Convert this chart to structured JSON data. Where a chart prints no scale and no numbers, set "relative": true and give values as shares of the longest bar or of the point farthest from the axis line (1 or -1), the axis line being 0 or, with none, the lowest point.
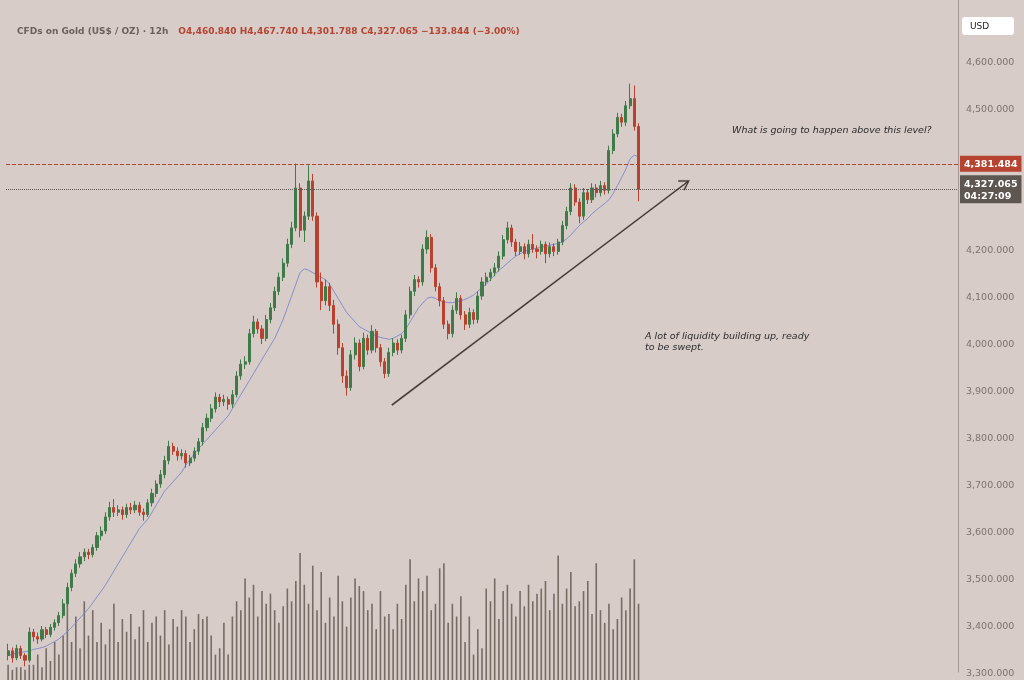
{
  "chart_data": [
    {
      "type": "candlestick",
      "title": "CFDs on Gold (US$ / OZ) · 12h",
      "subtitle": "O4,460.840 H4,467.740 L4,301.788 C4,327.065 −133.844 (−3.00%)",
      "ylabel": "USD",
      "categories": [
        null,
        null,
        null,
        null,
        null,
        null,
        null,
        null,
        null,
        null,
        null,
        null,
        null,
        null,
        null,
        null,
        null,
        null,
        null,
        null,
        null,
        null,
        null,
        null,
        null,
        null,
        null,
        null,
        null,
        null,
        null,
        null,
        null,
        null,
        null,
        null,
        null,
        null,
        null,
        null,
        null,
        null,
        null,
        null,
        null,
        null,
        null,
        null,
        null,
        null,
        null,
        null,
        null,
        null,
        null,
        null,
        null,
        null,
        null,
        null,
        null,
        null,
        null,
        null,
        null,
        null,
        null,
        null,
        null,
        null,
        null,
        null,
        null,
        null,
        null,
        null,
        null,
        null,
        null,
        null,
        null,
        null,
        null,
        null,
        null,
        null,
        null,
        null,
        null,
        null,
        null,
        null,
        null,
        null,
        null,
        null,
        null,
        null,
        null,
        null,
        null,
        null,
        null,
        null,
        null,
        null,
        null,
        null,
        null,
        null,
        null,
        null,
        null,
        null,
        null,
        null,
        null,
        null,
        null,
        null,
        null,
        null,
        null,
        null,
        null,
        null,
        null,
        null,
        null,
        null,
        null,
        null,
        null,
        null,
        null,
        null,
        null,
        null,
        null,
        null,
        null,
        null,
        null,
        null,
        null,
        null,
        null,
        null,
        null,
        null
      ],
      "ylim": [
        3300,
        4730
      ],
      "yticks": [
        {
          "value": 3300,
          "label": "3,300.000"
        },
        {
          "value": 3400,
          "label": "3,400.000"
        },
        {
          "value": 3500,
          "label": "3,500.000"
        },
        {
          "value": 3600,
          "label": "3,600.000"
        },
        {
          "value": 3700,
          "label": "3,700.000"
        },
        {
          "value": 3800,
          "label": "3,800.000"
        },
        {
          "value": 3900,
          "label": "3,900.000"
        },
        {
          "value": 4000,
          "label": "4,000.000"
        },
        {
          "value": 4100,
          "label": "4,100.000"
        },
        {
          "value": 4200,
          "label": "4,200.000"
        },
        {
          "value": 4500,
          "label": "4,500.000"
        },
        {
          "value": 4600,
          "label": "4,600.000"
        }
      ],
      "tick_labels": "y",
      "series": [
        {
          "type": "candlestick",
          "ohlc": [
            [
              3335,
              3360,
              3325,
              3345
            ],
            [
              3345,
              3352,
              3320,
              3330
            ],
            [
              3330,
              3358,
              3325,
              3350
            ],
            [
              3350,
              3356,
              3328,
              3335
            ],
            [
              3335,
              3340,
              3312,
              3325
            ],
            [
              3325,
              3395,
              3320,
              3385
            ],
            [
              3385,
              3392,
              3365,
              3375
            ],
            [
              3375,
              3384,
              3360,
              3370
            ],
            [
              3370,
              3398,
              3365,
              3390
            ],
            [
              3390,
              3396,
              3372,
              3380
            ],
            [
              3380,
              3402,
              3374,
              3395
            ],
            [
              3395,
              3412,
              3388,
              3405
            ],
            [
              3405,
              3428,
              3398,
              3420
            ],
            [
              3420,
              3455,
              3414,
              3445
            ],
            [
              3445,
              3490,
              3440,
              3480
            ],
            [
              3480,
              3518,
              3472,
              3510
            ],
            [
              3510,
              3540,
              3502,
              3530
            ],
            [
              3530,
              3555,
              3522,
              3545
            ],
            [
              3545,
              3563,
              3536,
              3555
            ],
            [
              3555,
              3562,
              3540,
              3550
            ],
            [
              3550,
              3572,
              3544,
              3565
            ],
            [
              3565,
              3598,
              3558,
              3590
            ],
            [
              3590,
              3610,
              3580,
              3600
            ],
            [
              3600,
              3640,
              3594,
              3630
            ],
            [
              3630,
              3662,
              3622,
              3650
            ],
            [
              3650,
              3668,
              3630,
              3640
            ],
            [
              3640,
              3655,
              3632,
              3645
            ],
            [
              3645,
              3652,
              3624,
              3635
            ],
            [
              3635,
              3658,
              3628,
              3650
            ],
            [
              3650,
              3660,
              3636,
              3645
            ],
            [
              3645,
              3664,
              3638,
              3655
            ],
            [
              3655,
              3662,
              3632,
              3640
            ],
            [
              3640,
              3648,
              3622,
              3635
            ],
            [
              3635,
              3668,
              3630,
              3660
            ],
            [
              3660,
              3690,
              3652,
              3680
            ],
            [
              3680,
              3708,
              3672,
              3700
            ],
            [
              3700,
              3730,
              3692,
              3720
            ],
            [
              3720,
              3760,
              3712,
              3750
            ],
            [
              3750,
              3792,
              3742,
              3780
            ],
            [
              3780,
              3788,
              3762,
              3770
            ],
            [
              3770,
              3778,
              3750,
              3760
            ],
            [
              3760,
              3774,
              3752,
              3765
            ],
            [
              3765,
              3772,
              3735,
              3745
            ],
            [
              3745,
              3762,
              3738,
              3755
            ],
            [
              3755,
              3778,
              3748,
              3770
            ],
            [
              3770,
              3798,
              3762,
              3790
            ],
            [
              3790,
              3830,
              3782,
              3820
            ],
            [
              3820,
              3850,
              3812,
              3840
            ],
            [
              3840,
              3870,
              3832,
              3860
            ],
            [
              3860,
              3895,
              3852,
              3885
            ],
            [
              3885,
              3892,
              3864,
              3875
            ],
            [
              3875,
              3890,
              3866,
              3880
            ],
            [
              3880,
              3886,
              3858,
              3870
            ],
            [
              3870,
              3900,
              3862,
              3890
            ],
            [
              3890,
              3940,
              3884,
              3930
            ],
            [
              3930,
              3965,
              3922,
              3955
            ],
            [
              3955,
              3972,
              3945,
              3960
            ],
            [
              3960,
              4030,
              3954,
              4020
            ],
            [
              4020,
              4058,
              4012,
              4045
            ],
            [
              4045,
              4052,
              4020,
              4030
            ],
            [
              4030,
              4038,
              3998,
              4010
            ],
            [
              4010,
              4060,
              4004,
              4050
            ],
            [
              4050,
              4085,
              4042,
              4075
            ],
            [
              4075,
              4120,
              4068,
              4110
            ],
            [
              4110,
              4150,
              4102,
              4140
            ],
            [
              4140,
              4180,
              4132,
              4170
            ],
            [
              4170,
              4222,
              4162,
              4210
            ],
            [
              4210,
              4258,
              4202,
              4245
            ],
            [
              4245,
              4382,
              4238,
              4330
            ],
            [
              4330,
              4340,
              4225,
              4240
            ],
            [
              4240,
              4280,
              4215,
              4270
            ],
            [
              4270,
              4378,
              4262,
              4345
            ],
            [
              4345,
              4360,
              4260,
              4270
            ],
            [
              4270,
              4278,
              4118,
              4130
            ],
            [
              4130,
              4150,
              4070,
              4090
            ],
            [
              4090,
              4135,
              4080,
              4120
            ],
            [
              4120,
              4128,
              4068,
              4080
            ],
            [
              4080,
              4092,
              4020,
              4040
            ],
            [
              4040,
              4050,
              3975,
              3990
            ],
            [
              3990,
              4000,
              3915,
              3930
            ],
            [
              3930,
              3942,
              3888,
              3905
            ],
            [
              3905,
              3985,
              3898,
              3975
            ],
            [
              3975,
              4012,
              3965,
              4000
            ],
            [
              4000,
              4008,
              3940,
              3950
            ],
            [
              3950,
              4022,
              3944,
              4010
            ],
            [
              4010,
              4018,
              3975,
              3985
            ],
            [
              3985,
              4038,
              3978,
              4025
            ],
            [
              4025,
              4030,
              3980,
              3990
            ],
            [
              3990,
              3998,
              3950,
              3960
            ],
            [
              3960,
              3968,
              3925,
              3935
            ],
            [
              3935,
              3990,
              3928,
              3980
            ],
            [
              3980,
              4010,
              3972,
              4000
            ],
            [
              4000,
              4008,
              3975,
              3985
            ],
            [
              3985,
              4018,
              3978,
              4010
            ],
            [
              4010,
              4070,
              4002,
              4060
            ],
            [
              4060,
              4120,
              4052,
              4110
            ],
            [
              4110,
              4145,
              4100,
              4135
            ],
            [
              4135,
              4142,
              4118,
              4130
            ],
            [
              4130,
              4210,
              4122,
              4200
            ],
            [
              4200,
              4240,
              4190,
              4225
            ],
            [
              4225,
              4232,
              4150,
              4160
            ],
            [
              4160,
              4168,
              4110,
              4120
            ],
            [
              4120,
              4128,
              4078,
              4090
            ],
            [
              4090,
              4098,
              4030,
              4040
            ],
            [
              4040,
              4048,
              4008,
              4020
            ],
            [
              4020,
              4080,
              4012,
              4070
            ],
            [
              4070,
              4108,
              4062,
              4095
            ],
            [
              4095,
              4102,
              4050,
              4060
            ],
            [
              4060,
              4068,
              4028,
              4040
            ],
            [
              4040,
              4075,
              4032,
              4065
            ],
            [
              4065,
              4072,
              4040,
              4050
            ],
            [
              4050,
              4110,
              4042,
              4100
            ],
            [
              4100,
              4140,
              4092,
              4130
            ],
            [
              4130,
              4150,
              4122,
              4140
            ],
            [
              4140,
              4158,
              4132,
              4150
            ],
            [
              4150,
              4170,
              4142,
              4160
            ],
            [
              4160,
              4195,
              4152,
              4185
            ],
            [
              4185,
              4230,
              4178,
              4220
            ],
            [
              4220,
              4258,
              4212,
              4245
            ],
            [
              4245,
              4252,
              4205,
              4215
            ],
            [
              4215,
              4222,
              4185,
              4195
            ],
            [
              4195,
              4215,
              4188,
              4205
            ],
            [
              4205,
              4212,
              4178,
              4190
            ],
            [
              4190,
              4220,
              4182,
              4210
            ],
            [
              4210,
              4232,
              4192,
              4200
            ],
            [
              4200,
              4208,
              4180,
              4195
            ],
            [
              4195,
              4218,
              4188,
              4210
            ],
            [
              4210,
              4216,
              4170,
              4190
            ],
            [
              4190,
              4214,
              4182,
              4205
            ],
            [
              4205,
              4212,
              4185,
              4195
            ],
            [
              4195,
              4222,
              4188,
              4215
            ],
            [
              4215,
              4260,
              4208,
              4250
            ],
            [
              4250,
              4290,
              4242,
              4280
            ],
            [
              4280,
              4340,
              4272,
              4330
            ],
            [
              4330,
              4338,
              4292,
              4300
            ],
            [
              4300,
              4308,
              4255,
              4270
            ],
            [
              4270,
              4330,
              4262,
              4320
            ],
            [
              4320,
              4328,
              4296,
              4305
            ],
            [
              4305,
              4340,
              4298,
              4330
            ],
            [
              4330,
              4338,
              4310,
              4320
            ],
            [
              4320,
              4345,
              4312,
              4335
            ],
            [
              4335,
              4342,
              4316,
              4325
            ],
            [
              4325,
              4420,
              4318,
              4410
            ],
            [
              4410,
              4455,
              4402,
              4445
            ],
            [
              4445,
              4490,
              4438,
              4480
            ],
            [
              4480,
              4488,
              4460,
              4470
            ],
            [
              4470,
              4515,
              4462,
              4505
            ],
            [
              4505,
              4552,
              4498,
              4520
            ],
            [
              4520,
              4548,
              4452,
              4461
            ],
            [
              4460.84,
              4467.74,
              4301.788,
              4327.065
            ]
          ],
          "colors": [
            "#3e7b48",
            "#b8422f",
            "#3e7b48",
            "#b8422f",
            "#b8422f",
            "#3e7b48",
            "#b8422f",
            "#b8422f",
            "#3e7b48",
            "#b8422f",
            "#3e7b48",
            "#3e7b48",
            "#3e7b48",
            "#3e7b48",
            "#3e7b48",
            "#3e7b48",
            "#3e7b48",
            "#3e7b48",
            "#3e7b48",
            "#b8422f",
            "#3e7b48",
            "#3e7b48",
            "#3e7b48",
            "#3e7b48",
            "#3e7b48",
            "#b8422f",
            "#3e7b48",
            "#b8422f",
            "#3e7b48",
            "#b8422f",
            "#3e7b48",
            "#b8422f",
            "#b8422f",
            "#3e7b48",
            "#3e7b48",
            "#3e7b48",
            "#3e7b48",
            "#3e7b48",
            "#3e7b48",
            "#b8422f",
            "#b8422f",
            "#3e7b48",
            "#b8422f",
            "#3e7b48",
            "#3e7b48",
            "#3e7b48",
            "#3e7b48",
            "#3e7b48",
            "#3e7b48",
            "#3e7b48",
            "#b8422f",
            "#3e7b48",
            "#b8422f",
            "#3e7b48",
            "#3e7b48",
            "#3e7b48",
            "#3e7b48",
            "#3e7b48",
            "#3e7b48",
            "#b8422f",
            "#b8422f",
            "#3e7b48",
            "#3e7b48",
            "#3e7b48",
            "#3e7b48",
            "#3e7b48",
            "#3e7b48",
            "#3e7b48",
            "#3e7b48",
            "#b8422f",
            "#3e7b48",
            "#3e7b48",
            "#b8422f",
            "#b8422f",
            "#b8422f",
            "#3e7b48",
            "#b8422f",
            "#b8422f",
            "#b8422f",
            "#b8422f",
            "#b8422f",
            "#3e7b48",
            "#3e7b48",
            "#b8422f",
            "#3e7b48",
            "#b8422f",
            "#3e7b48",
            "#b8422f",
            "#b8422f",
            "#b8422f",
            "#3e7b48",
            "#3e7b48",
            "#b8422f",
            "#3e7b48",
            "#3e7b48",
            "#3e7b48",
            "#3e7b48",
            "#b8422f",
            "#3e7b48",
            "#3e7b48",
            "#b8422f",
            "#b8422f",
            "#b8422f",
            "#b8422f",
            "#b8422f",
            "#3e7b48",
            "#3e7b48",
            "#b8422f",
            "#b8422f",
            "#3e7b48",
            "#b8422f",
            "#3e7b48",
            "#3e7b48",
            "#3e7b48",
            "#3e7b48",
            "#3e7b48",
            "#3e7b48",
            "#3e7b48",
            "#3e7b48",
            "#b8422f",
            "#b8422f",
            "#3e7b48",
            "#b8422f",
            "#3e7b48",
            "#b8422f",
            "#b8422f",
            "#3e7b48",
            "#b8422f",
            "#3e7b48",
            "#b8422f",
            "#3e7b48",
            "#3e7b48",
            "#3e7b48",
            "#3e7b48",
            "#b8422f",
            "#b8422f",
            "#3e7b48",
            "#b8422f",
            "#3e7b48",
            "#b8422f",
            "#3e7b48",
            "#b8422f",
            "#3e7b48",
            "#3e7b48",
            "#3e7b48",
            "#b8422f",
            "#3e7b48",
            "#3e7b48",
            "#b8422f",
            "#b8422f"
          ]
        },
        {
          "type": "line",
          "color": "#7d87cc",
          "values": [
            3335,
            3338,
            3340,
            3342,
            3343,
            3345,
            3348,
            3350,
            3352,
            3355,
            3360,
            3365,
            3370,
            3378,
            3386,
            3395,
            3405,
            3415,
            3425,
            3435,
            3447,
            3460,
            3472,
            3485,
            3500,
            3515,
            3530,
            3545,
            3560,
            3575,
            3590,
            3605,
            3615,
            3625,
            3640,
            3655,
            3670,
            3685,
            3695,
            3705,
            3715,
            3725,
            3740,
            3752,
            3765,
            3775,
            3785,
            3795,
            3805,
            3815,
            3825,
            3835,
            3845,
            3860,
            3875,
            3890,
            3905,
            3920,
            3935,
            3950,
            3965,
            3980,
            3995,
            4010,
            4030,
            4050,
            4075,
            4100,
            4125,
            4150,
            4158,
            4155,
            4150,
            4145,
            4140,
            4135,
            4125,
            4110,
            4095,
            4080,
            4065,
            4055,
            4045,
            4035,
            4030,
            4025,
            4020,
            4015,
            4012,
            4010,
            4008,
            4010,
            4015,
            4020,
            4030,
            4045,
            4060,
            4075,
            4085,
            4095,
            4098,
            4095,
            4090,
            4088,
            4086,
            4086,
            4088,
            4090,
            4093,
            4097,
            4102,
            4110,
            4118,
            4125,
            4135,
            4145,
            4155,
            4162,
            4170,
            4178,
            4185,
            4190,
            4195,
            4198,
            4200,
            4202,
            4204,
            4206,
            4208,
            4210,
            4212,
            4215,
            4222,
            4230,
            4240,
            4250,
            4258,
            4265,
            4275,
            4283,
            4290,
            4297,
            4305,
            4318,
            4335,
            4352,
            4370,
            4392,
            4400,
            4396
          ]
        }
      ],
      "ref_lines": [
        {
          "axis": "y",
          "value": 4381.484,
          "label": "4,381.484",
          "color": "#b5432f",
          "line_style": "dashed"
        },
        {
          "axis": "y",
          "value": 4327.065,
          "label": "4,327.065\n04:27:09",
          "color": "#5e5651",
          "line_style": "dotted"
        }
      ],
      "annotations": [
        "What is going to happen above this level?",
        "A lot of liquidity building up, ready to be swept."
      ]
    },
    {
      "type": "bar",
      "relative": true,
      "color": "#776b64",
      "tick_labels": false,
      "categories": [
        null,
        null,
        null,
        null,
        null,
        null,
        null,
        null,
        null,
        null,
        null,
        null,
        null,
        null,
        null,
        null,
        null,
        null,
        null,
        null,
        null,
        null,
        null,
        null,
        null,
        null,
        null,
        null,
        null,
        null,
        null,
        null,
        null,
        null,
        null,
        null,
        null,
        null,
        null,
        null,
        null,
        null,
        null,
        null,
        null,
        null,
        null,
        null,
        null,
        null,
        null,
        null,
        null,
        null,
        null,
        null,
        null,
        null,
        null,
        null,
        null,
        null,
        null,
        null,
        null,
        null,
        null,
        null,
        null,
        null,
        null,
        null,
        null,
        null,
        null,
        null,
        null,
        null,
        null,
        null,
        null,
        null,
        null,
        null,
        null,
        null,
        null,
        null,
        null,
        null,
        null,
        null,
        null,
        null,
        null,
        null,
        null,
        null,
        null,
        null,
        null,
        null,
        null,
        null,
        null,
        null,
        null,
        null,
        null,
        null,
        null,
        null,
        null,
        null,
        null,
        null,
        null,
        null,
        null,
        null,
        null,
        null,
        null,
        null,
        null,
        null,
        null,
        null,
        null,
        null,
        null,
        null,
        null,
        null,
        null,
        null,
        null,
        null,
        null,
        null,
        null,
        null,
        null,
        null,
        null,
        null,
        null,
        null,
        null,
        null
      ],
      "values": [
        0.12,
        0.08,
        0.1,
        0.1,
        0.08,
        0.12,
        0.12,
        0.2,
        0.1,
        0.25,
        0.15,
        0.3,
        0.2,
        0.35,
        0.6,
        0.3,
        0.5,
        0.25,
        0.62,
        0.35,
        0.55,
        0.3,
        0.45,
        0.28,
        0.4,
        0.6,
        0.3,
        0.48,
        0.38,
        0.52,
        0.32,
        0.42,
        0.55,
        0.3,
        0.45,
        0.5,
        0.35,
        0.55,
        0.28,
        0.48,
        0.42,
        0.55,
        0.5,
        0.3,
        0.4,
        0.52,
        0.48,
        0.5,
        0.35,
        0.2,
        0.25,
        0.45,
        0.2,
        0.5,
        0.62,
        0.55,
        0.8,
        0.65,
        0.75,
        0.5,
        0.7,
        0.6,
        0.68,
        0.55,
        0.45,
        0.58,
        0.72,
        0.62,
        0.78,
        1.0,
        0.75,
        0.6,
        0.9,
        0.55,
        0.85,
        0.45,
        0.65,
        0.5,
        0.82,
        0.62,
        0.42,
        0.65,
        0.8,
        0.74,
        0.7,
        0.55,
        0.6,
        0.4,
        0.7,
        0.5,
        0.52,
        0.4,
        0.6,
        0.48,
        0.75,
        0.95,
        0.62,
        0.8,
        0.7,
        0.82,
        0.55,
        0.6,
        0.88,
        0.92,
        0.45,
        0.6,
        0.5,
        0.66,
        0.3,
        0.5,
        0.2,
        0.4,
        0.25,
        0.72,
        0.62,
        0.8,
        0.48,
        0.7,
        0.75,
        0.6,
        0.5,
        0.7,
        0.58,
        0.75,
        0.62,
        0.68,
        0.72,
        0.78,
        0.55,
        0.68,
        0.98,
        0.6,
        0.72,
        0.85,
        0.58,
        0.62,
        0.7,
        0.78,
        0.52,
        0.92,
        0.55,
        0.45,
        0.6,
        0.4,
        0.48,
        0.65,
        0.55,
        0.72,
        0.95,
        0.6
      ]
    }
  ]
}
